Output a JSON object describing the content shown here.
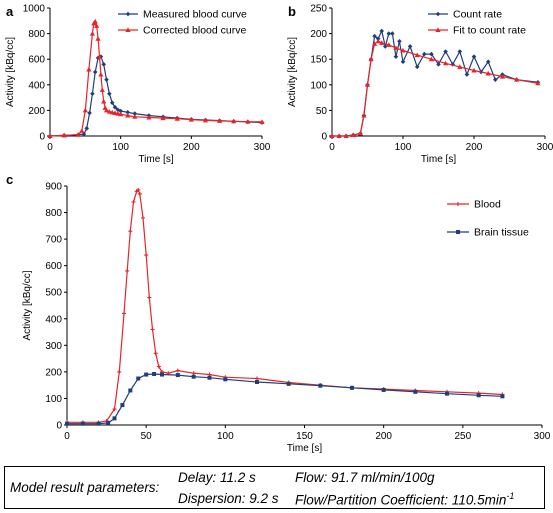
{
  "chart_data": [
    {
      "id": "a",
      "type": "line",
      "panel_label": "a",
      "title": "",
      "xlabel": "Time [s]",
      "ylabel": "Activity [kBq/cc]",
      "xlim": [
        0,
        300
      ],
      "ylim": [
        0,
        1000
      ],
      "xticks": [
        0,
        100,
        200,
        300
      ],
      "yticks": [
        0,
        200,
        400,
        600,
        800,
        1000
      ],
      "legend_position": "top-right",
      "series": [
        {
          "name": "Measured blood curve",
          "color": "#1f3f7a",
          "marker": "diamond",
          "x": [
            0,
            20,
            40,
            48,
            52,
            56,
            60,
            64,
            68,
            72,
            76,
            80,
            84,
            88,
            92,
            96,
            100,
            110,
            120,
            140,
            160,
            180,
            200,
            220,
            240,
            260,
            280,
            300
          ],
          "y": [
            0,
            5,
            10,
            15,
            60,
            180,
            330,
            500,
            610,
            620,
            560,
            440,
            330,
            260,
            225,
            205,
            195,
            185,
            175,
            160,
            150,
            140,
            130,
            125,
            120,
            115,
            110,
            105
          ]
        },
        {
          "name": "Corrected blood curve",
          "color": "#e8242a",
          "marker": "triangle",
          "x": [
            0,
            20,
            40,
            45,
            50,
            55,
            60,
            62,
            64,
            66,
            68,
            70,
            72,
            74,
            76,
            78,
            80,
            84,
            88,
            92,
            96,
            100,
            110,
            120,
            140,
            160,
            180,
            200,
            220,
            240,
            260,
            280,
            300
          ],
          "y": [
            0,
            5,
            10,
            40,
            200,
            520,
            800,
            880,
            895,
            860,
            760,
            620,
            480,
            360,
            270,
            220,
            200,
            190,
            185,
            180,
            175,
            170,
            160,
            150,
            145,
            140,
            135,
            128,
            122,
            118,
            115,
            112,
            110
          ]
        }
      ]
    },
    {
      "id": "b",
      "type": "line",
      "panel_label": "b",
      "title": "",
      "xlabel": "Time [s]",
      "ylabel": "Activity [kBq/cc]",
      "xlim": [
        0,
        300
      ],
      "ylim": [
        0,
        250
      ],
      "xticks": [
        0,
        100,
        200,
        300
      ],
      "yticks": [
        0,
        50,
        100,
        150,
        200,
        250
      ],
      "legend_position": "top-right",
      "series": [
        {
          "name": "Count rate",
          "color": "#1f3f7a",
          "marker": "diamond",
          "x": [
            0,
            10,
            20,
            30,
            40,
            45,
            50,
            55,
            60,
            65,
            70,
            75,
            80,
            85,
            90,
            95,
            100,
            110,
            120,
            130,
            140,
            150,
            160,
            170,
            180,
            190,
            200,
            210,
            220,
            230,
            240,
            260,
            290
          ],
          "y": [
            0,
            0,
            0,
            2,
            5,
            40,
            100,
            150,
            195,
            190,
            205,
            175,
            200,
            200,
            155,
            185,
            145,
            175,
            135,
            160,
            160,
            140,
            165,
            140,
            165,
            120,
            155,
            125,
            145,
            110,
            120,
            110,
            105
          ]
        },
        {
          "name": "Fit to count rate",
          "color": "#e8242a",
          "marker": "triangle",
          "x": [
            0,
            10,
            20,
            30,
            40,
            45,
            50,
            55,
            60,
            65,
            70,
            80,
            90,
            100,
            120,
            140,
            160,
            180,
            200,
            220,
            240,
            260,
            290
          ],
          "y": [
            0,
            0,
            0,
            2,
            5,
            40,
            100,
            150,
            180,
            185,
            182,
            178,
            172,
            167,
            158,
            150,
            142,
            135,
            128,
            122,
            116,
            110,
            103
          ]
        }
      ]
    },
    {
      "id": "c",
      "type": "line",
      "panel_label": "c",
      "title": "",
      "xlabel": "Time [s]",
      "ylabel": "Activity [kBq/cc]",
      "xlim": [
        0,
        300
      ],
      "ylim": [
        0,
        900
      ],
      "xticks": [
        0,
        50,
        100,
        150,
        200,
        250,
        300
      ],
      "yticks": [
        0,
        100,
        200,
        300,
        400,
        500,
        600,
        700,
        800,
        900
      ],
      "legend_position": "top-right",
      "series": [
        {
          "name": "Blood",
          "color": "#e8242a",
          "marker": "plus",
          "x": [
            0,
            10,
            20,
            25,
            30,
            33,
            36,
            38,
            40,
            42,
            44,
            45,
            46,
            48,
            50,
            52,
            54,
            56,
            58,
            60,
            64,
            70,
            80,
            90,
            100,
            120,
            140,
            160,
            180,
            200,
            220,
            240,
            260,
            275
          ],
          "y": [
            10,
            10,
            10,
            15,
            60,
            200,
            420,
            580,
            730,
            840,
            880,
            885,
            870,
            780,
            640,
            480,
            360,
            270,
            220,
            200,
            195,
            205,
            195,
            190,
            180,
            175,
            160,
            150,
            140,
            135,
            130,
            125,
            120,
            115
          ]
        },
        {
          "name": "Brain tissue",
          "color": "#1f3f7a",
          "marker": "square",
          "x": [
            0,
            10,
            20,
            26,
            30,
            35,
            40,
            45,
            50,
            55,
            60,
            70,
            80,
            90,
            100,
            120,
            140,
            160,
            180,
            200,
            220,
            240,
            260,
            275
          ],
          "y": [
            5,
            5,
            5,
            8,
            25,
            75,
            130,
            175,
            190,
            192,
            190,
            188,
            182,
            178,
            172,
            162,
            155,
            148,
            140,
            132,
            125,
            118,
            112,
            108
          ]
        }
      ]
    }
  ],
  "results": {
    "title": "Model result parameters:",
    "delay": "Delay: 11.2 s",
    "dispersion": "Dispersion: 9.2 s",
    "flow": "Flow: 91.7 ml/min/100g",
    "flow_partition_text": "Flow/Partition Coefficient: 110.5min",
    "flow_partition_sup": "-1"
  }
}
